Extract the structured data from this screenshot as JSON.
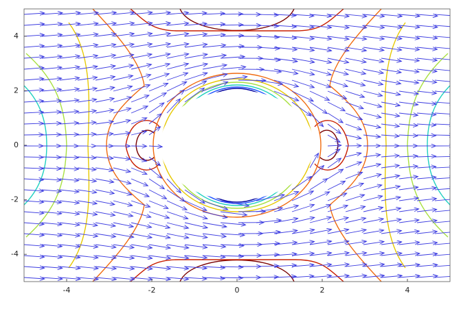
{
  "chart_data": {
    "type": "contour",
    "xlim": [
      -5,
      5
    ],
    "ylim": [
      -5,
      5
    ],
    "xticks": [
      -4,
      -2,
      0,
      2,
      4
    ],
    "yticks": [
      -4,
      -2,
      0,
      2,
      4
    ]
  }
}
